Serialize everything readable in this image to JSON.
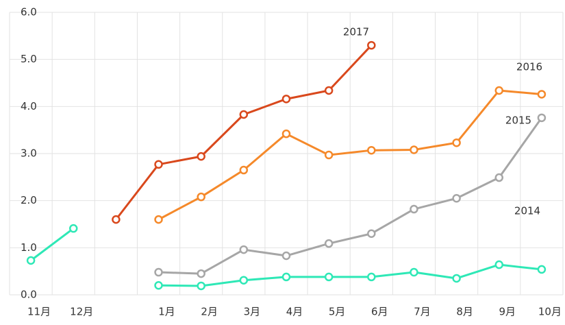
{
  "chart_data": {
    "type": "line",
    "categories": [
      "11月",
      "12月",
      null,
      "1月",
      "2月",
      "3月",
      "4月",
      "5月",
      "6月",
      "7月",
      "8月",
      "9月",
      "10月"
    ],
    "series": [
      {
        "name": "2017",
        "color": "#d9481c",
        "values": [
          null,
          null,
          1.6,
          2.77,
          2.94,
          3.83,
          4.16,
          4.34,
          5.3,
          null,
          null,
          null,
          null
        ]
      },
      {
        "name": "2016",
        "color": "#f5892a",
        "values": [
          null,
          null,
          null,
          1.6,
          2.08,
          2.65,
          3.42,
          2.97,
          3.07,
          3.08,
          3.23,
          4.34,
          4.26
        ]
      },
      {
        "name": "2015",
        "color": "#a6a6a6",
        "values": [
          null,
          null,
          null,
          0.48,
          0.45,
          0.96,
          0.83,
          1.09,
          1.3,
          1.82,
          2.05,
          2.49,
          3.76
        ]
      },
      {
        "name": "2014",
        "color": "#2ee8b6",
        "values": [
          0.73,
          1.41,
          null,
          0.2,
          0.19,
          0.31,
          0.38,
          0.38,
          0.38,
          0.48,
          0.35,
          0.64,
          0.54
        ]
      }
    ],
    "ylim": [
      0,
      6
    ],
    "yticks": [
      {
        "value": 0,
        "label": "0.0"
      },
      {
        "value": 1,
        "label": "1.0"
      },
      {
        "value": 2,
        "label": "2.0"
      },
      {
        "value": 3,
        "label": "3.0"
      },
      {
        "value": 4,
        "label": "4.0"
      },
      {
        "value": 5,
        "label": "5.0"
      },
      {
        "value": 6,
        "label": "6.0"
      }
    ],
    "grid": true
  }
}
